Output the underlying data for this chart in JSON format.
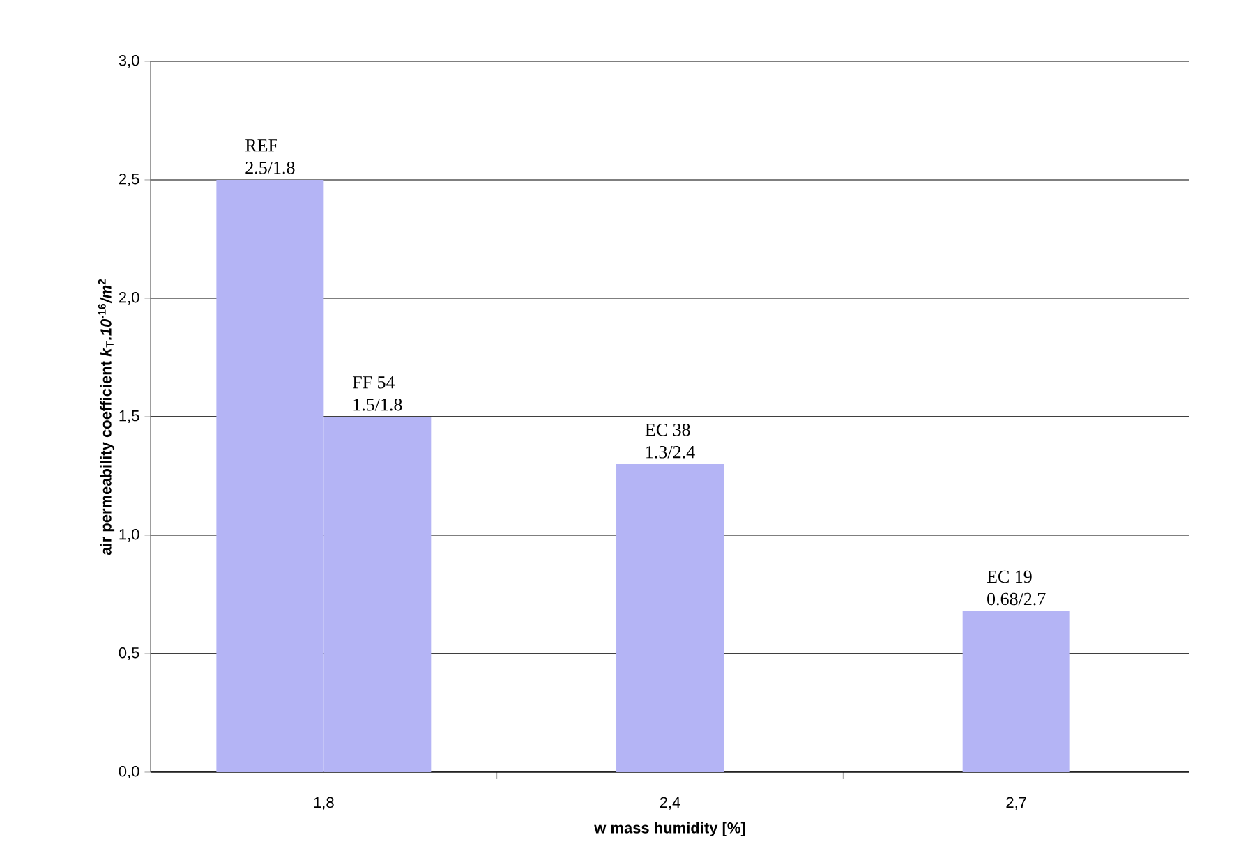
{
  "chart_data": {
    "type": "bar",
    "xlabel": "w mass humidity [%]",
    "ylabel": "air permeability coefficient  *k*$_{T}$*.10*$^{-16}$*/m*$^{2}$",
    "categories": [
      "1,8",
      "2,4",
      "2,7"
    ],
    "series": [
      {
        "name": "REF",
        "color": "#b4b4f5",
        "values": [
          2.5,
          null,
          null
        ],
        "value_labels": [
          "2.5/1.8",
          null,
          null
        ]
      },
      {
        "name": "FF 54",
        "color": "#b4b4f5",
        "values": [
          1.5,
          null,
          null
        ],
        "value_labels": [
          "1.5/1.8",
          null,
          null
        ]
      },
      {
        "name": "EC 38",
        "color": "#b4b4f5",
        "values": [
          null,
          1.3,
          null
        ],
        "value_labels": [
          null,
          "1.3/2.4",
          null
        ]
      },
      {
        "name": "EC 19",
        "color": "#b4b4f5",
        "values": [
          null,
          null,
          0.68
        ],
        "value_labels": [
          null,
          null,
          "0.68/2.7"
        ]
      }
    ],
    "ylim": [
      0,
      3
    ],
    "yticks": [
      {
        "value": 0,
        "label": "0,0"
      },
      {
        "value": 0.5,
        "label": "0,5"
      },
      {
        "value": 1,
        "label": "1,0"
      },
      {
        "value": 1.5,
        "label": "1,5"
      },
      {
        "value": 2,
        "label": "2,0"
      },
      {
        "value": 2.5,
        "label": "2,5"
      },
      {
        "value": 3,
        "label": "3,0"
      }
    ],
    "grid": "y"
  }
}
